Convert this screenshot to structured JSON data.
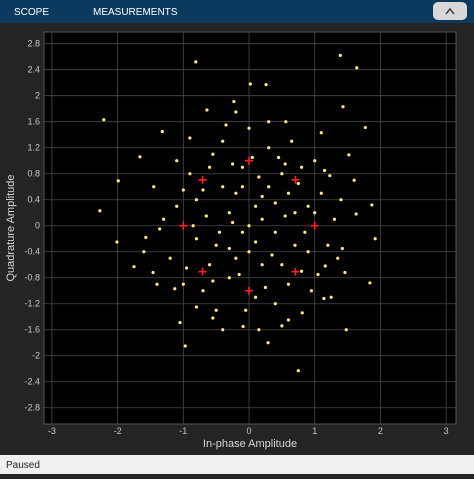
{
  "toolbar": {
    "tabs": [
      "SCOPE",
      "MEASUREMENTS"
    ]
  },
  "chart_data": {
    "type": "scatter",
    "xlabel": "In-phase Amplitude",
    "ylabel": "Quadrature Amplitude",
    "xlim": [
      -3.12,
      3.15
    ],
    "ylim": [
      -3.05,
      2.98
    ],
    "xticks": [
      -3,
      -2,
      -1,
      0,
      1,
      2,
      3
    ],
    "yticks": [
      2.8,
      2.4,
      2,
      1.6,
      1.2,
      0.8,
      0.4,
      0,
      -0.4,
      -0.8,
      -1.2,
      -1.6,
      -2,
      -2.4,
      -2.8
    ],
    "grid": true,
    "series": [
      {
        "color": "#ffe680",
        "marker": "dot",
        "x": [
          1.39,
          1.64,
          -0.81,
          0.02,
          0.26,
          -2.21,
          1.43,
          1.77,
          -2.27,
          -1.99,
          -2.01,
          -1.75,
          1.92,
          1.84,
          -0.97,
          -1.05,
          0.75,
          1.48,
          1.14,
          1.23,
          -1.66,
          -1.32,
          -0.64,
          -0.23,
          0.56,
          1.1,
          1.52,
          1.87,
          1.63,
          -1.36,
          -1.57,
          -1.46,
          -1.13,
          -0.55,
          -0.09,
          0.29,
          0.5,
          0.81,
          1.16,
          1.42,
          1.46,
          0.1,
          -0.2,
          0.4,
          -0.5,
          0.7,
          -0.8,
          0.2,
          -0.3,
          0.9,
          -0.1,
          0.5,
          -0.6,
          0.3,
          -0.4,
          1.1,
          -1.1,
          1.2,
          -1.2,
          0.6,
          -0.7,
          0.0,
          0.2,
          -0.1,
          0.8,
          -0.9,
          0.4,
          -0.5,
          1.0,
          -1.0,
          0.0,
          0.1,
          -0.3,
          0.6,
          -0.6,
          0.3,
          -0.2,
          1.3,
          -1.3,
          0.7,
          -0.4,
          0.9,
          -0.8,
          0.15,
          -0.15,
          0.45,
          -0.55,
          1.05,
          -0.95,
          0.35,
          -0.25,
          0.55,
          -0.65,
          0.05,
          0.25,
          -0.05,
          0.85,
          -0.85,
          1.15,
          -1.1,
          0.65,
          -0.35,
          0.95,
          -0.8,
          0.5,
          -0.45,
          0.2,
          -0.1,
          0.75,
          -0.7,
          1.4,
          -1.45,
          1.35,
          -1.4,
          0.1,
          -0.3,
          0.4,
          0.0,
          0.3,
          -0.2,
          0.6,
          -0.4,
          1.6,
          -1.6,
          1.0,
          -1.0,
          0.15,
          -0.9,
          1.25,
          0.55,
          -0.25,
          0.8,
          -0.55
        ],
        "y": [
          2.62,
          2.43,
          2.52,
          2.18,
          2.17,
          1.63,
          1.83,
          1.51,
          0.23,
          0.69,
          -0.25,
          -0.63,
          -0.2,
          -0.88,
          -1.85,
          -1.49,
          -2.23,
          -1.6,
          -1.12,
          0.77,
          1.06,
          1.45,
          1.78,
          1.91,
          1.6,
          1.43,
          1.09,
          0.32,
          0.18,
          -0.05,
          -0.18,
          -0.72,
          -0.97,
          -1.42,
          -1.55,
          -1.8,
          -1.54,
          -1.34,
          -0.62,
          -0.35,
          -0.72,
          0.3,
          0.5,
          -0.1,
          -0.3,
          0.2,
          0.4,
          -0.6,
          -0.8,
          -0.4,
          0.9,
          0.8,
          0.9,
          1.2,
          1.3,
          0.5,
          0.3,
          -0.3,
          -0.5,
          -0.9,
          -1.0,
          -0.4,
          0.1,
          -0.1,
          0.9,
          0.8,
          -1.2,
          -1.3,
          1.0,
          -0.9,
          1.5,
          -1.1,
          0.2,
          0.5,
          -0.6,
          0.6,
          -0.5,
          0.1,
          0.1,
          -0.3,
          0.6,
          0.3,
          -0.2,
          0.75,
          -0.75,
          1.05,
          1.1,
          -0.75,
          -0.65,
          -0.45,
          0.05,
          0.15,
          0.15,
          1.05,
          -0.95,
          -1.3,
          -0.1,
          0.0,
          0.85,
          1.0,
          1.3,
          1.55,
          -1.0,
          -1.25,
          -0.6,
          -0.1,
          0.45,
          0.6,
          0.65,
          0.55,
          0.4,
          0.6,
          -0.5,
          -0.9,
          -0.25,
          -0.35,
          0.35,
          0.0,
          1.6,
          1.75,
          -1.45,
          -1.6,
          0.7,
          -0.4,
          0.2,
          0.55,
          -1.6,
          1.35,
          -1.1,
          0.95,
          0.95,
          -0.7,
          -0.85
        ]
      },
      {
        "color": "#ff2020",
        "marker": "plus",
        "x": [
          1,
          0.707,
          0,
          -0.707,
          -1,
          -0.707,
          0,
          0.707
        ],
        "y": [
          0,
          0.707,
          1,
          0.707,
          0,
          -0.707,
          -1,
          -0.707
        ]
      }
    ]
  },
  "status": "Paused"
}
